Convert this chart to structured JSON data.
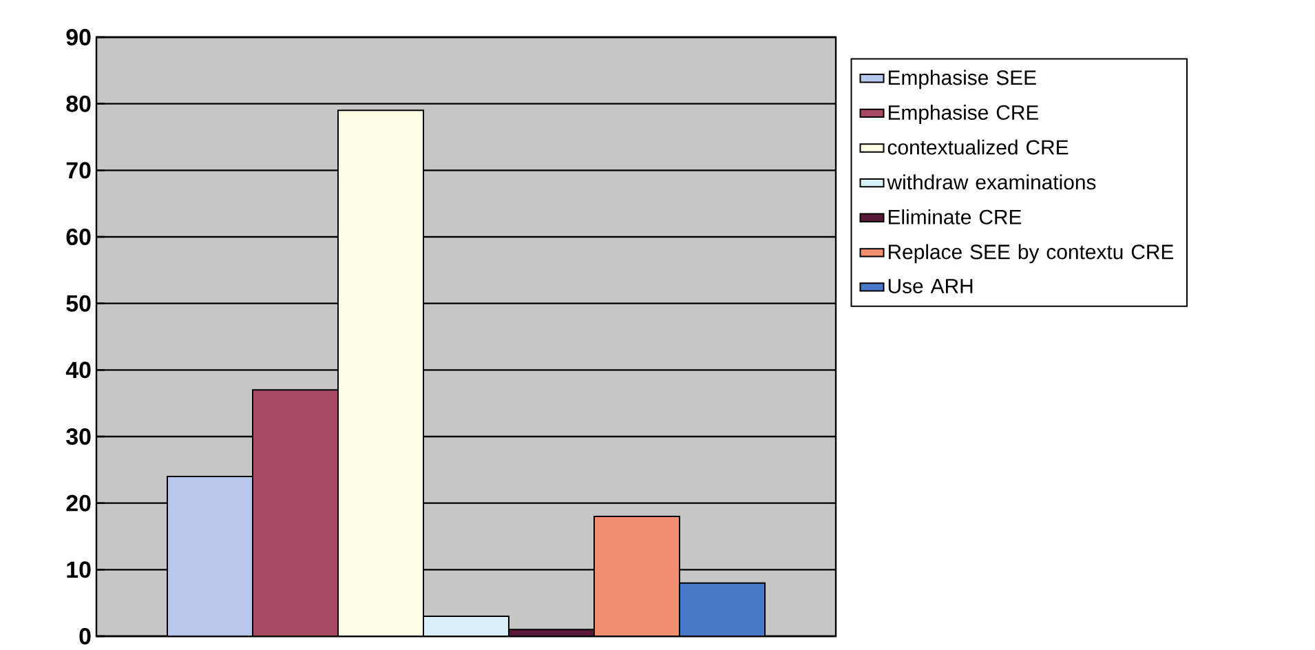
{
  "chart_data": {
    "type": "bar",
    "categories": [
      null
    ],
    "series": [
      {
        "name": "Emphasise SEE",
        "color": "#b8c8ec",
        "values": [
          24
        ]
      },
      {
        "name": "Emphasise CRE",
        "color": "#a84860",
        "values": [
          37
        ]
      },
      {
        "name": "contextualized CRE",
        "color": "#ffffe6",
        "values": [
          79
        ]
      },
      {
        "name": "withdraw examinations",
        "color": "#d8f0f8",
        "values": [
          3
        ]
      },
      {
        "name": "Eliminate CRE",
        "color": "#5a1838",
        "values": [
          1
        ]
      },
      {
        "name": "Replace SEE by contextu CRE",
        "color": "#f09070",
        "values": [
          18
        ]
      },
      {
        "name": "Use ARH",
        "color": "#4878c8",
        "values": [
          8
        ]
      }
    ],
    "ylim": [
      0,
      90
    ],
    "yticks": [
      0,
      10,
      20,
      30,
      40,
      50,
      60,
      70,
      80,
      90
    ],
    "grid": "y",
    "legend": "right"
  }
}
